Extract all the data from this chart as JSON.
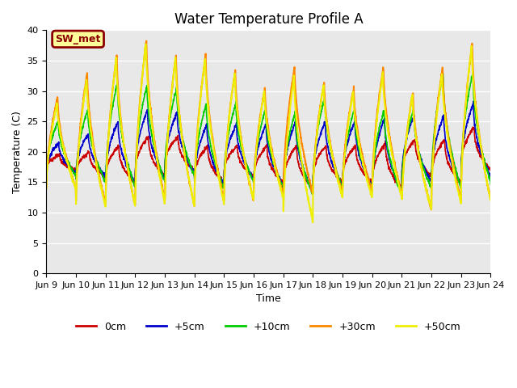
{
  "title": "Water Temperature Profile A",
  "xlabel": "Time",
  "ylabel": "Temperature (C)",
  "ylim": [
    0,
    40
  ],
  "yticks": [
    0,
    5,
    10,
    15,
    20,
    25,
    30,
    35,
    40
  ],
  "figure_bg": "#ffffff",
  "plot_bg_color": "#e8e8e8",
  "grid_color": "#ffffff",
  "series": [
    {
      "label": "0cm",
      "color": "#cc0000",
      "lw": 1.2
    },
    {
      "label": "+5cm",
      "color": "#0000cc",
      "lw": 1.2
    },
    {
      "label": "+10cm",
      "color": "#00cc00",
      "lw": 1.2
    },
    {
      "label": "+30cm",
      "color": "#ff8800",
      "lw": 1.5
    },
    {
      "label": "+50cm",
      "color": "#eeee00",
      "lw": 1.5
    }
  ],
  "annotation_text": "SW_met",
  "annotation_bbox": {
    "facecolor": "#ffff99",
    "edgecolor": "#8b0000",
    "lw": 2
  },
  "x_tick_labels": [
    "Jun 9",
    "Jun 10",
    "Jun 11",
    "Jun 12",
    "Jun 13",
    "Jun 14",
    "Jun 15",
    "Jun 16",
    "Jun 17",
    "Jun 18",
    "Jun 19",
    "Jun 20",
    "Jun 21",
    "Jun 22",
    "Jun 23",
    "Jun 24"
  ],
  "n_days": 15,
  "title_fontsize": 12,
  "label_fontsize": 9,
  "tick_fontsize": 8,
  "legend_fontsize": 9
}
